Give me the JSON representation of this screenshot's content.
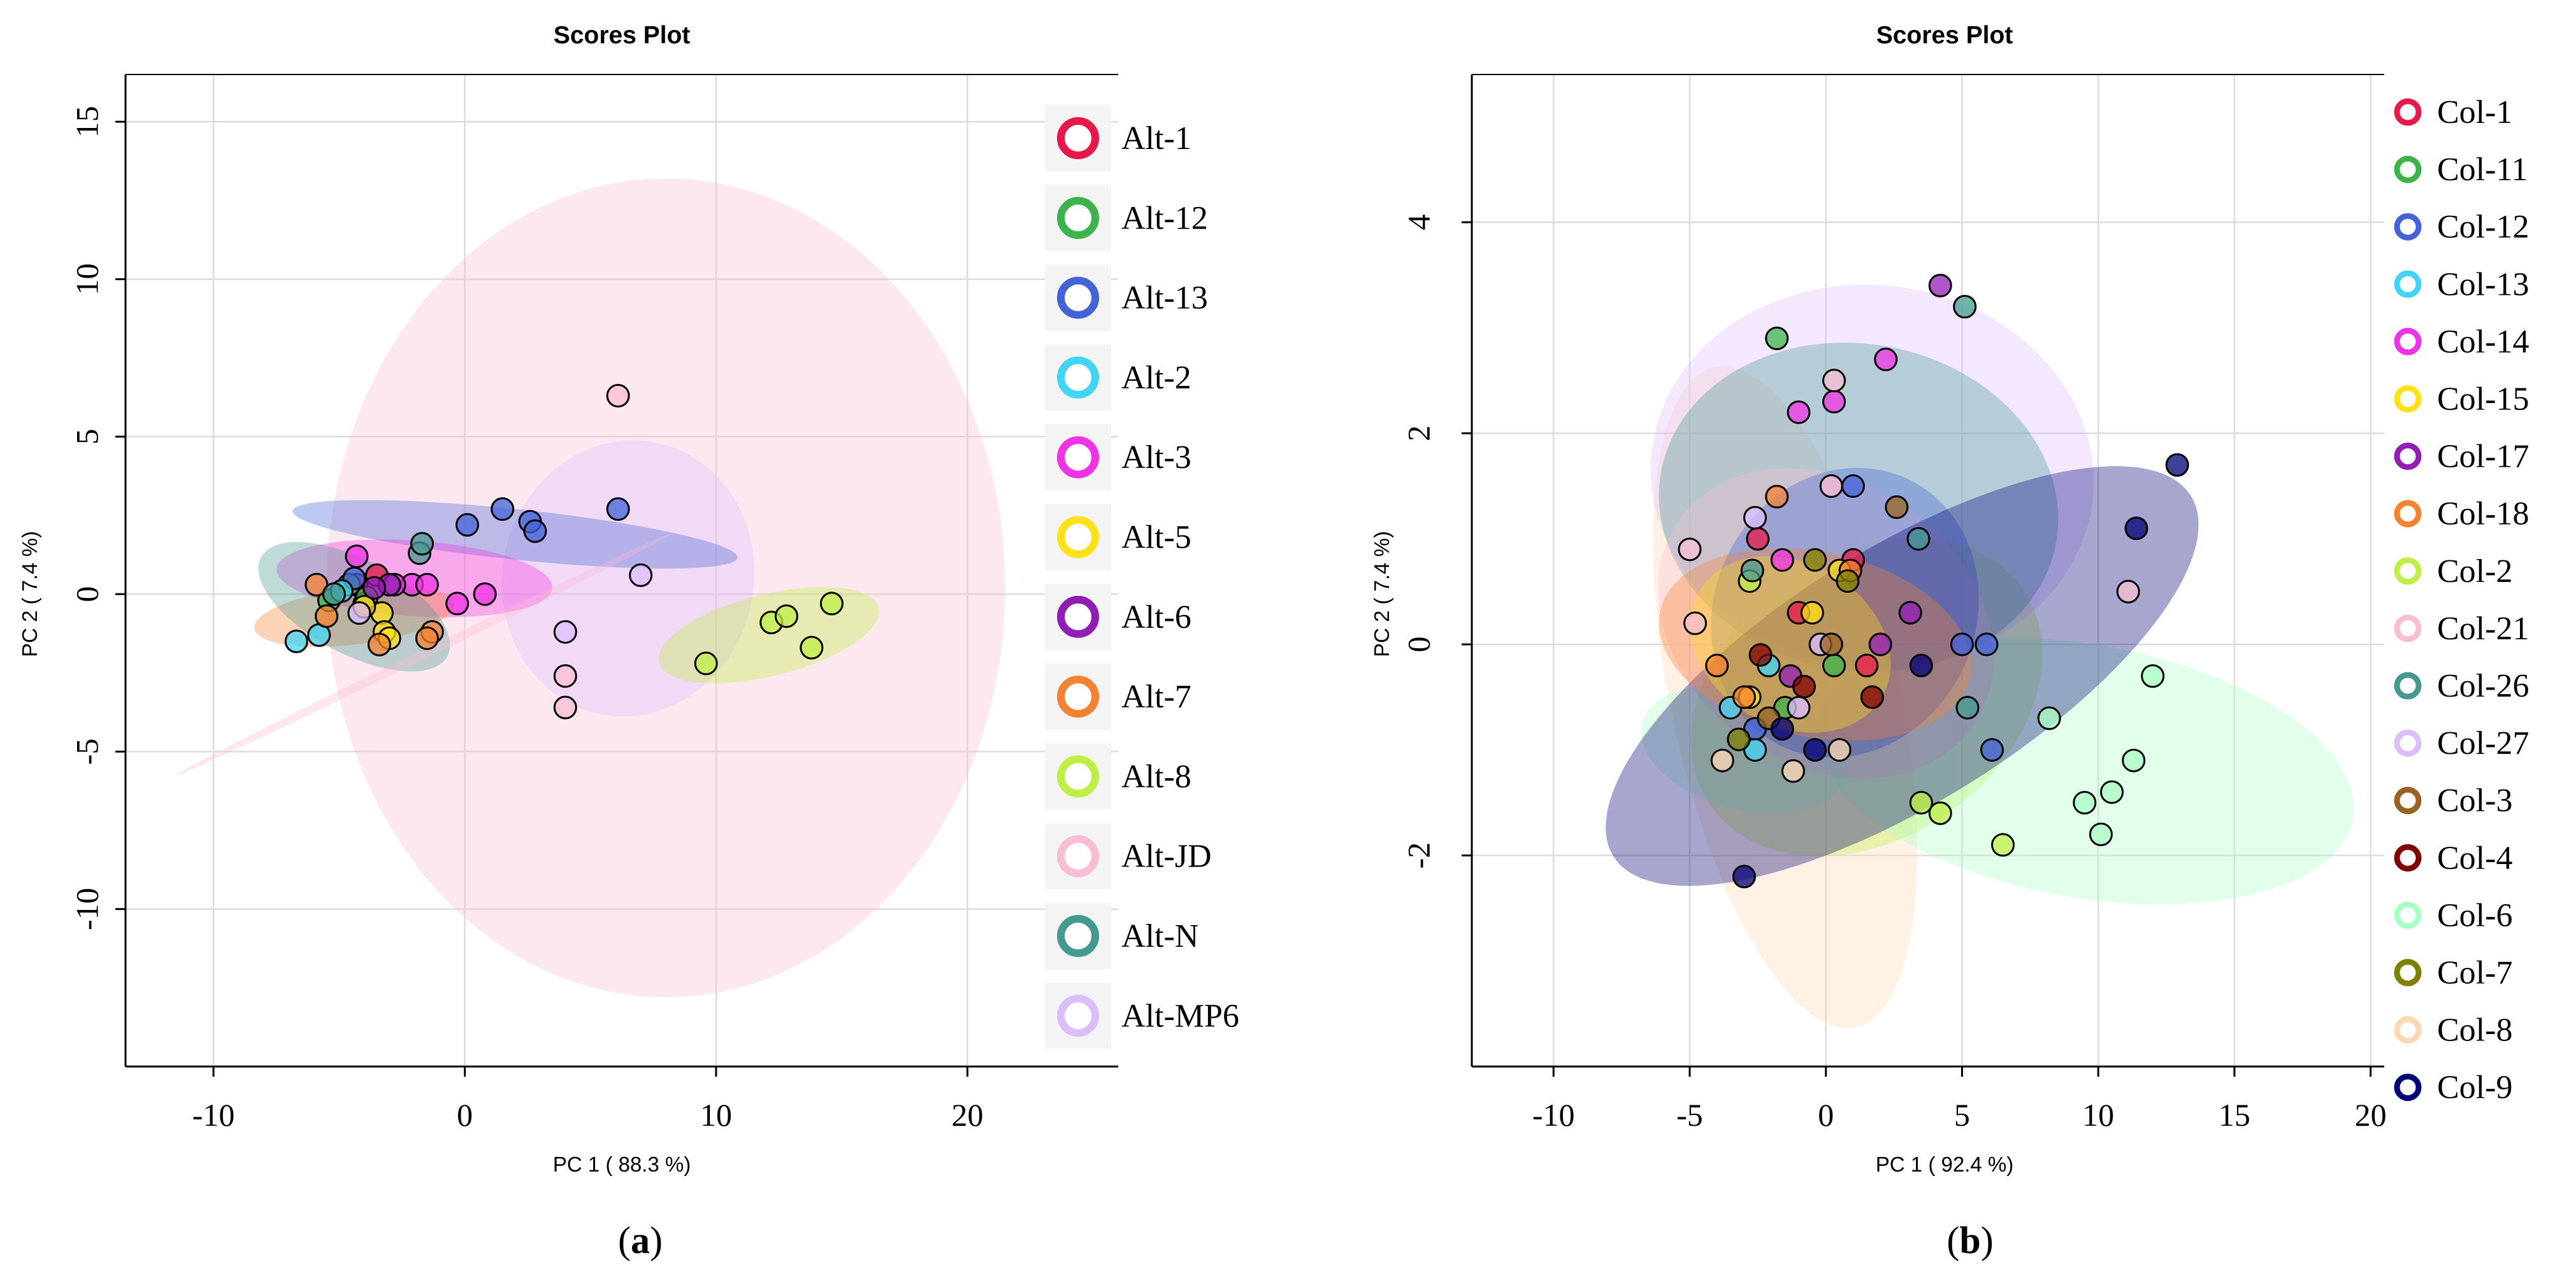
{
  "figure": {
    "caption_a": "a",
    "caption_b": "b"
  },
  "chart_data": [
    {
      "type": "scatter",
      "title": "Scores Plot",
      "xlabel": "PC 1 ( 88.3 %)",
      "ylabel": "PC 2 ( 7.4 %)",
      "xlim": [
        -13.5,
        26
      ],
      "ylim": [
        -15,
        16.5
      ],
      "xticks": [
        -10,
        0,
        10,
        20
      ],
      "yticks": [
        15,
        10,
        5,
        0,
        -5,
        -10
      ],
      "xtick_labels": [
        "-10",
        "0",
        "10",
        "20"
      ],
      "ytick_labels": [
        "15",
        "10",
        "5",
        "0",
        "-5",
        "-10"
      ],
      "grid": true,
      "legend": "right",
      "series": [
        {
          "name": "Alt-1",
          "color": "#e8194a",
          "points": [
            [
              -3.5,
              0.6
            ],
            [
              -4.3,
              0.3
            ],
            [
              -4.0,
              -0.3
            ]
          ]
        },
        {
          "name": "Alt-12",
          "color": "#3cb44b",
          "points": [
            [
              -4.6,
              0.3
            ],
            [
              -3.9,
              -0.1
            ],
            [
              -5.4,
              -0.2
            ]
          ]
        },
        {
          "name": "Alt-13",
          "color": "#4363d8",
          "points": [
            [
              0.1,
              2.2
            ],
            [
              1.5,
              2.7
            ],
            [
              2.6,
              2.3
            ],
            [
              2.8,
              2.0
            ],
            [
              6.1,
              2.7
            ],
            [
              -4.4,
              0.5
            ]
          ]
        },
        {
          "name": "Alt-2",
          "color": "#42d4f4",
          "points": [
            [
              -6.7,
              -1.5
            ],
            [
              -5.8,
              -1.3
            ],
            [
              -4.9,
              0.1
            ]
          ]
        },
        {
          "name": "Alt-3",
          "color": "#f032e6",
          "points": [
            [
              -2.1,
              0.3
            ],
            [
              -1.5,
              0.3
            ],
            [
              -0.3,
              -0.3
            ],
            [
              0.8,
              0.0
            ],
            [
              -2.8,
              0.3
            ],
            [
              -4.3,
              1.2
            ]
          ]
        },
        {
          "name": "Alt-5",
          "color": "#ffe119",
          "points": [
            [
              -3.3,
              -0.6
            ],
            [
              -3.2,
              -1.2
            ],
            [
              -4.0,
              -0.4
            ],
            [
              -3.0,
              -1.4
            ]
          ]
        },
        {
          "name": "Alt-6",
          "color": "#911eb4",
          "points": [
            [
              -3.0,
              0.3
            ],
            [
              -3.6,
              0.2
            ]
          ]
        },
        {
          "name": "Alt-7",
          "color": "#f58231",
          "points": [
            [
              -5.9,
              0.3
            ],
            [
              -3.4,
              -1.6
            ],
            [
              -1.3,
              -1.2
            ],
            [
              -1.5,
              -1.4
            ],
            [
              -5.5,
              -0.7
            ]
          ]
        },
        {
          "name": "Alt-8",
          "color": "#bfef45",
          "points": [
            [
              9.6,
              -2.2
            ],
            [
              12.2,
              -0.9
            ],
            [
              12.8,
              -0.7
            ],
            [
              13.8,
              -1.7
            ],
            [
              14.6,
              -0.3
            ]
          ]
        },
        {
          "name": "Alt-JD",
          "color": "#fabed4",
          "points": [
            [
              6.1,
              6.3
            ],
            [
              4.0,
              -2.6
            ],
            [
              4.0,
              -3.6
            ]
          ]
        },
        {
          "name": "Alt-N",
          "color": "#469990",
          "points": [
            [
              -1.8,
              1.3
            ],
            [
              -1.7,
              1.6
            ],
            [
              -5.2,
              0.0
            ]
          ]
        },
        {
          "name": "Alt-MP6",
          "color": "#dcbeff",
          "points": [
            [
              7.0,
              0.6
            ],
            [
              4.0,
              -1.2
            ],
            [
              -4.2,
              -0.6
            ]
          ]
        }
      ],
      "ellipses": [
        {
          "color": "#fabed4",
          "cx": 8.0,
          "cy": 0.2,
          "rx": 13.5,
          "ry": 13.0,
          "angle": 0
        },
        {
          "color": "#dcbeff",
          "cx": 6.5,
          "cy": 0.5,
          "rx": 5.0,
          "ry": 4.4,
          "angle": -12
        },
        {
          "color": "#bfef45",
          "cx": 12.1,
          "cy": -1.3,
          "rx": 4.5,
          "ry": 1.3,
          "angle": 14
        },
        {
          "color": "#4363d8",
          "cx": 2.0,
          "cy": 1.9,
          "rx": 8.9,
          "ry": 0.8,
          "angle": -6
        },
        {
          "color": "#f032e6",
          "cx": -2.0,
          "cy": 0.5,
          "rx": 5.5,
          "ry": 1.2,
          "angle": -4
        },
        {
          "color": "#f58231",
          "cx": -4.4,
          "cy": -0.7,
          "rx": 4.0,
          "ry": 0.9,
          "angle": 7
        },
        {
          "color": "#469990",
          "cx": -4.4,
          "cy": -0.4,
          "rx": 4.2,
          "ry": 1.5,
          "angle": -28
        },
        {
          "color": "#fabed4",
          "cx": -1.6,
          "cy": -1.9,
          "rx": 11.0,
          "ry": 0.15,
          "angle": 26
        }
      ]
    },
    {
      "type": "scatter",
      "title": "Scores Plot",
      "xlabel": "PC 1 ( 92.4 %)",
      "ylabel": "PC 2 ( 7.4 %)",
      "xlim": [
        -13,
        20.5
      ],
      "ylim": [
        -4,
        5.4
      ],
      "xticks": [
        -10,
        -5,
        0,
        5,
        10,
        15,
        20
      ],
      "yticks": [
        4,
        2,
        0,
        -2
      ],
      "xtick_labels": [
        "-10",
        "-5",
        "0",
        "5",
        "10",
        "15",
        "20"
      ],
      "ytick_labels": [
        "4",
        "2",
        "0",
        "-2"
      ],
      "grid": true,
      "legend": "right",
      "series": [
        {
          "name": "Col-1",
          "color": "#e8194a",
          "points": [
            [
              -2.5,
              1.0
            ],
            [
              1.0,
              0.8
            ],
            [
              1.5,
              -0.2
            ],
            [
              -1.0,
              0.3
            ]
          ]
        },
        {
          "name": "Col-11",
          "color": "#3cb44b",
          "points": [
            [
              -1.8,
              2.9
            ],
            [
              -1.5,
              -0.6
            ],
            [
              0.3,
              -0.2
            ]
          ]
        },
        {
          "name": "Col-12",
          "color": "#4363d8",
          "points": [
            [
              5.0,
              0.0
            ],
            [
              5.9,
              0.0
            ],
            [
              6.1,
              -1.0
            ],
            [
              1.0,
              1.5
            ],
            [
              -2.6,
              -0.8
            ]
          ]
        },
        {
          "name": "Col-13",
          "color": "#42d4f4",
          "points": [
            [
              -2.6,
              -1.0
            ],
            [
              -3.5,
              -0.6
            ],
            [
              -2.1,
              -0.2
            ]
          ]
        },
        {
          "name": "Col-14",
          "color": "#f032e6",
          "points": [
            [
              -1.0,
              2.2
            ],
            [
              0.3,
              2.3
            ],
            [
              2.2,
              2.7
            ],
            [
              -1.6,
              0.8
            ]
          ]
        },
        {
          "name": "Col-15",
          "color": "#ffe119",
          "points": [
            [
              0.5,
              0.7
            ],
            [
              -0.5,
              0.3
            ],
            [
              -2.8,
              -0.5
            ]
          ]
        },
        {
          "name": "Col-17",
          "color": "#911eb4",
          "points": [
            [
              4.2,
              3.4
            ],
            [
              3.1,
              0.3
            ],
            [
              2.0,
              0.0
            ],
            [
              -1.3,
              -0.3
            ]
          ]
        },
        {
          "name": "Col-18",
          "color": "#f58231",
          "points": [
            [
              -1.8,
              1.4
            ],
            [
              -4.0,
              -0.2
            ],
            [
              0.9,
              0.7
            ],
            [
              -3.0,
              -0.5
            ]
          ]
        },
        {
          "name": "Col-2",
          "color": "#bfef45",
          "points": [
            [
              3.5,
              -1.5
            ],
            [
              4.2,
              -1.6
            ],
            [
              6.5,
              -1.9
            ],
            [
              -2.8,
              0.6
            ]
          ]
        },
        {
          "name": "Col-21",
          "color": "#fabed4",
          "points": [
            [
              -5.0,
              0.9
            ],
            [
              -4.8,
              0.2
            ],
            [
              11.1,
              0.5
            ],
            [
              0.3,
              2.5
            ],
            [
              0.2,
              1.5
            ]
          ]
        },
        {
          "name": "Col-26",
          "color": "#469990",
          "points": [
            [
              5.1,
              3.2
            ],
            [
              -2.7,
              0.7
            ],
            [
              5.2,
              -0.6
            ],
            [
              3.4,
              1.0
            ]
          ]
        },
        {
          "name": "Col-27",
          "color": "#dcbeff",
          "points": [
            [
              -2.6,
              1.2
            ],
            [
              -1.0,
              -0.6
            ],
            [
              -0.2,
              0.0
            ]
          ]
        },
        {
          "name": "Col-3",
          "color": "#9a6324",
          "points": [
            [
              2.6,
              1.3
            ],
            [
              0.2,
              0.0
            ],
            [
              -2.1,
              -0.7
            ]
          ]
        },
        {
          "name": "Col-4",
          "color": "#800000",
          "points": [
            [
              1.7,
              -0.5
            ],
            [
              -0.8,
              -0.4
            ],
            [
              -2.4,
              -0.1
            ]
          ]
        },
        {
          "name": "Col-6",
          "color": "#aaffc3",
          "points": [
            [
              8.2,
              -0.7
            ],
            [
              9.5,
              -1.5
            ],
            [
              10.1,
              -1.8
            ],
            [
              10.5,
              -1.4
            ],
            [
              11.3,
              -1.1
            ],
            [
              12.0,
              -0.3
            ]
          ]
        },
        {
          "name": "Col-7",
          "color": "#808000",
          "points": [
            [
              0.8,
              0.6
            ],
            [
              -0.4,
              0.8
            ],
            [
              -3.2,
              -0.9
            ]
          ]
        },
        {
          "name": "Col-8",
          "color": "#ffd8b1",
          "points": [
            [
              -3.8,
              -1.1
            ],
            [
              -1.2,
              -1.2
            ],
            [
              0.5,
              -1.0
            ]
          ]
        },
        {
          "name": "Col-9",
          "color": "#000075",
          "points": [
            [
              12.9,
              1.7
            ],
            [
              11.4,
              1.1
            ],
            [
              3.5,
              -0.2
            ],
            [
              -0.4,
              -1.0
            ],
            [
              -1.6,
              -0.8
            ],
            [
              -3.0,
              -2.2
            ]
          ]
        }
      ],
      "ellipses": [
        {
          "color": "#ffd8b1",
          "cx": -1.5,
          "cy": -0.5,
          "rx": 4.2,
          "ry": 3.2,
          "angle": 12
        },
        {
          "color": "#bfef45",
          "cx": 1.5,
          "cy": -0.5,
          "rx": 5.2,
          "ry": 1.8,
          "angle": -55
        },
        {
          "color": "#aaffc3",
          "cx": 9.5,
          "cy": -1.2,
          "rx": 10.0,
          "ry": 1.2,
          "angle": -10
        },
        {
          "color": "#aaffc3",
          "cx": -3.0,
          "cy": -1.0,
          "rx": 2.2,
          "ry": 1.0,
          "angle": 75
        },
        {
          "color": "#dcbeff",
          "cx": 1.7,
          "cy": 1.6,
          "rx": 7.0,
          "ry": 2.1,
          "angle": 84
        },
        {
          "color": "#469990",
          "cx": 1.2,
          "cy": 1.3,
          "rx": 6.0,
          "ry": 1.9,
          "angle": 80
        },
        {
          "color": "#fabed4",
          "cx": 0.0,
          "cy": 0.2,
          "rx": 5.2,
          "ry": 1.7,
          "angle": 55
        },
        {
          "color": "#4363d8",
          "cx": 0.7,
          "cy": 0.3,
          "rx": 4.8,
          "ry": 1.4,
          "angle": -25
        },
        {
          "color": "#000075",
          "cx": 2.8,
          "cy": -0.3,
          "rx": 12.5,
          "ry": 1.2,
          "angle": 32
        },
        {
          "color": "#f58231",
          "cx": -0.4,
          "cy": 0.0,
          "rx": 3.4,
          "ry": 1.5,
          "angle": 78
        },
        {
          "color": "#ffe119",
          "cx": -1.3,
          "cy": 0.0,
          "rx": 3.0,
          "ry": 1.0,
          "angle": 60
        }
      ]
    }
  ]
}
